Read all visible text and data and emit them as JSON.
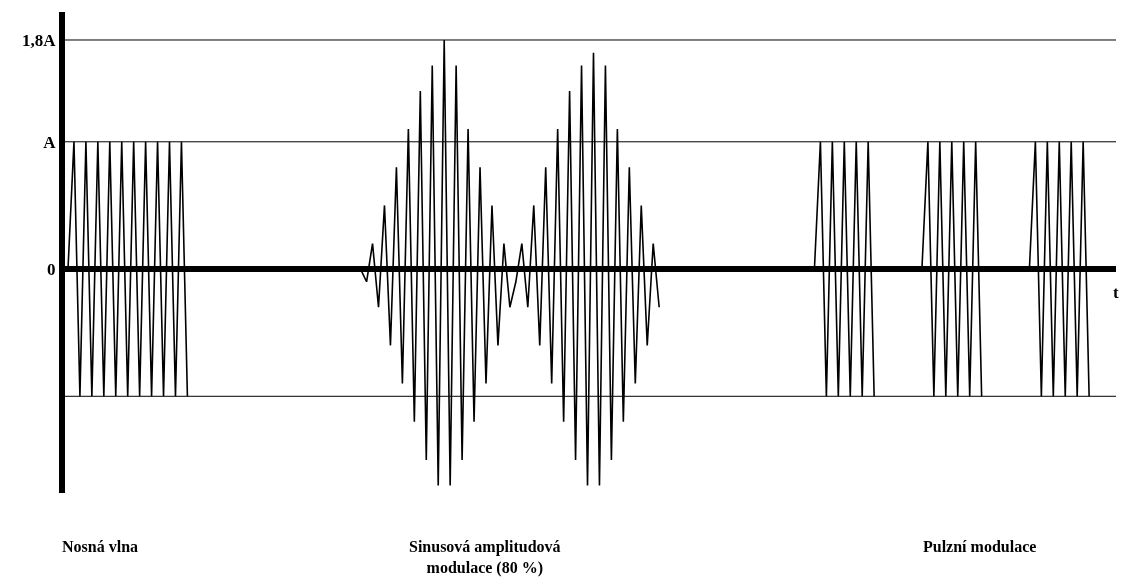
{
  "chart_data": {
    "type": "line",
    "xlabel": "t",
    "categories": [
      null,
      null,
      null,
      null,
      null,
      null,
      null,
      null,
      null,
      null,
      null,
      null,
      null,
      null,
      null,
      null,
      null,
      null,
      null,
      null,
      null,
      null,
      null,
      null,
      null,
      null,
      null,
      null,
      null,
      null,
      null,
      null,
      null,
      null,
      null,
      null,
      null,
      null,
      null,
      null,
      null,
      null,
      null,
      null,
      null,
      null,
      null,
      null,
      null,
      null,
      null,
      null,
      null,
      null,
      null,
      null,
      null,
      null,
      null,
      null,
      null,
      null,
      null,
      null,
      null,
      null,
      null,
      null,
      null,
      null,
      null,
      null,
      null,
      null,
      null,
      null,
      null,
      null,
      null,
      null,
      null,
      null,
      null,
      null,
      null,
      null,
      null,
      null,
      null,
      null,
      null,
      null,
      null,
      null,
      null,
      null,
      null,
      null,
      null,
      null,
      null,
      null,
      null,
      null,
      null,
      null,
      null,
      null,
      null,
      null,
      null,
      null,
      null,
      null,
      null,
      null,
      null,
      null,
      null,
      null,
      null,
      null,
      null,
      null,
      null,
      null,
      null,
      null,
      null,
      null,
      null,
      null,
      null,
      null,
      null,
      null,
      null,
      null,
      null,
      null,
      null,
      null,
      null,
      null,
      null,
      null,
      null,
      null,
      null,
      null,
      null,
      null,
      null,
      null,
      null,
      null,
      null,
      null,
      null,
      null,
      null,
      null,
      null,
      null,
      null,
      null,
      null,
      null,
      null,
      null,
      null,
      null,
      null,
      null,
      null,
      null
    ],
    "series": [
      {
        "color": "#000000",
        "values": [
          0,
          1,
          -1,
          1,
          -1,
          1,
          -1,
          1,
          -1,
          1,
          -1,
          1,
          -1,
          1,
          -1,
          1,
          -1,
          1,
          -1,
          1,
          -1,
          null,
          null,
          null,
          null,
          null,
          null,
          null,
          null,
          null,
          null,
          null,
          null,
          null,
          null,
          null,
          null,
          null,
          null,
          null,
          null,
          null,
          null,
          null,
          null,
          null,
          null,
          null,
          null,
          0,
          -0.1,
          0.2,
          -0.3,
          0.5,
          -0.6,
          0.8,
          -0.9,
          1.1,
          -1.2,
          1.4,
          -1.5,
          1.6,
          -1.7,
          1.8,
          -1.7,
          1.6,
          -1.5,
          1.1,
          -1.2,
          0.8,
          -0.9,
          0.5,
          -0.6,
          0.2,
          -0.3,
          -0.1,
          0.2,
          -0.3,
          0.5,
          -0.6,
          0.8,
          -0.9,
          1.1,
          -1.2,
          1.4,
          -1.5,
          1.6,
          -1.7,
          1.7,
          -1.7,
          1.6,
          -1.5,
          1.1,
          -1.2,
          0.8,
          -0.9,
          0.5,
          -0.6,
          0.2,
          -0.3,
          null,
          null,
          null,
          null,
          null,
          null,
          null,
          null,
          null,
          null,
          null,
          null,
          null,
          null,
          null,
          null,
          null,
          null,
          null,
          null,
          null,
          null,
          null,
          null,
          null,
          0,
          1,
          -1,
          1,
          -1,
          1,
          -1,
          1,
          -1,
          1,
          -1,
          null,
          null,
          null,
          null,
          null,
          null,
          null,
          0,
          1,
          -1,
          1,
          -1,
          1,
          -1,
          1,
          -1,
          1,
          -1,
          null,
          null,
          null,
          null,
          null,
          null,
          null,
          0,
          1,
          -1,
          1,
          -1,
          1,
          -1,
          1,
          -1,
          1,
          -1,
          null,
          null,
          null,
          null
        ]
      }
    ],
    "ylim": [
      -1.76,
      2.02
    ],
    "yticks": [
      0,
      {
        "value": 1,
        "label": "A"
      },
      {
        "value": 1.8,
        "label": "1,8A"
      }
    ],
    "ref_lines": [
      {
        "axis": "y",
        "value": 1.8
      },
      {
        "axis": "y",
        "value": 1
      },
      {
        "axis": "y",
        "value": -1
      }
    ],
    "tick_labels": "y",
    "marker": "none",
    "line_style": "solid",
    "grid": false,
    "annotations": [
      "Nosná vlna",
      "Sinusová amplitudová modulace (80 %)",
      "Pulzní modulace"
    ]
  }
}
